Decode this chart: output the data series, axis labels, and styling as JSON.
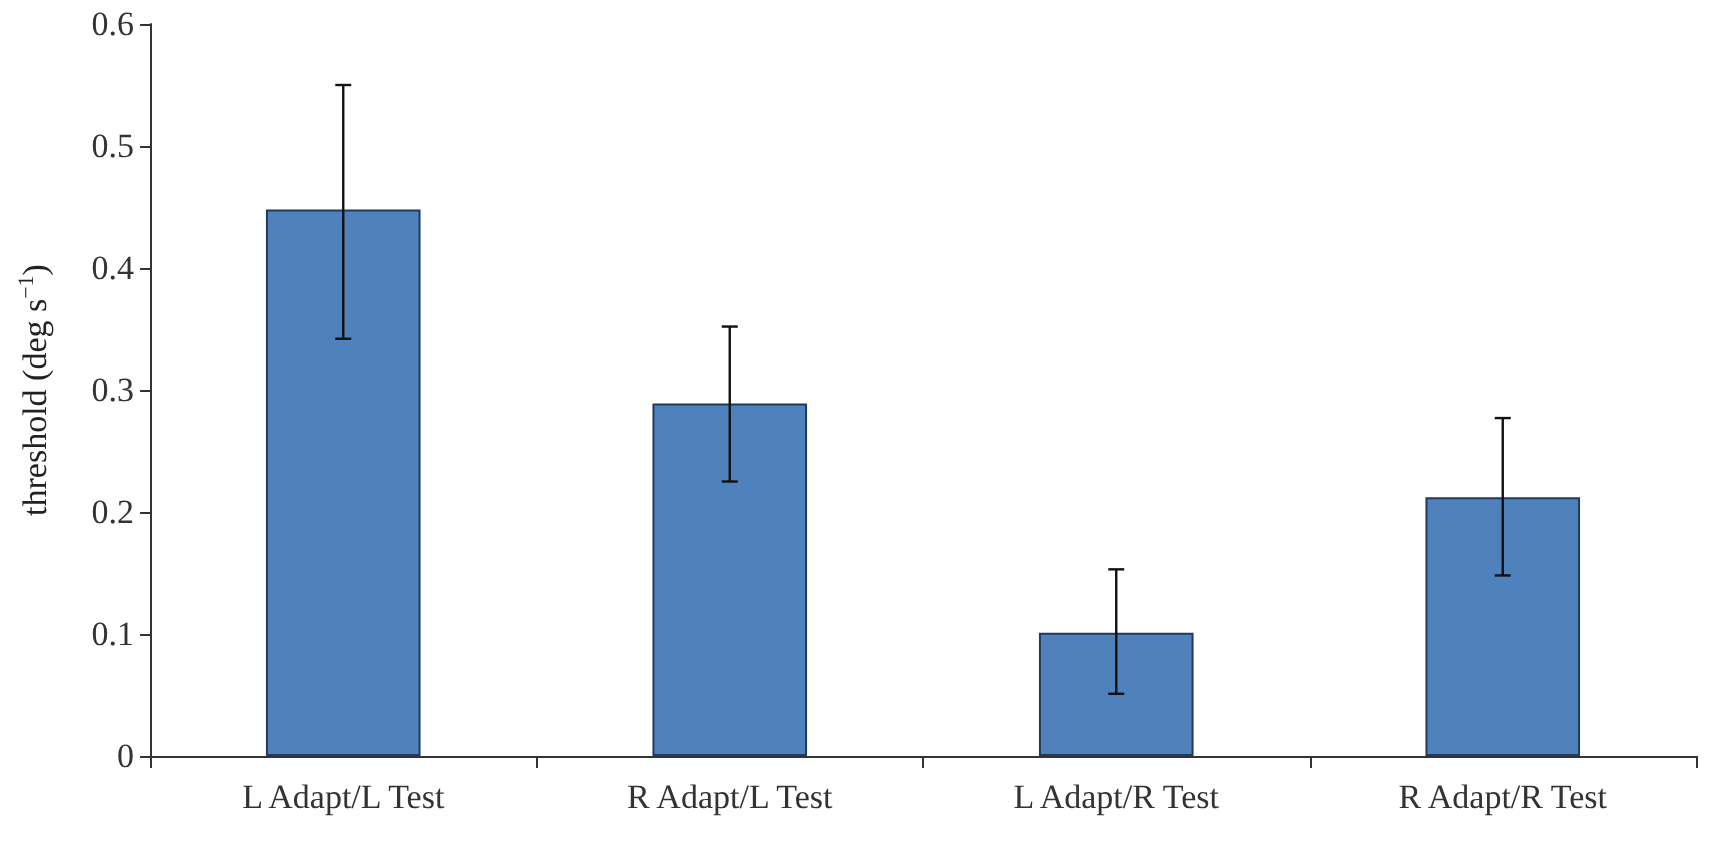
{
  "chart_data": {
    "type": "bar",
    "ylabel": "threshold (deg s$^{−1}$)",
    "categories": [
      "L Adapt/L Test",
      "R Adapt/L Test",
      "L Adapt/R Test",
      "R Adapt/R Test"
    ],
    "values": [
      0.448,
      0.289,
      0.101,
      0.212
    ],
    "errors": [
      [
        0.342,
        0.55
      ],
      [
        0.225,
        0.352
      ],
      [
        0.051,
        0.153
      ],
      [
        0.148,
        0.277
      ]
    ],
    "color": "#4f81bd",
    "ylim": [
      0,
      0.6
    ],
    "yticks": [
      0,
      0.1,
      0.2,
      0.3,
      0.4,
      0.5,
      0.6
    ],
    "grid": false
  }
}
